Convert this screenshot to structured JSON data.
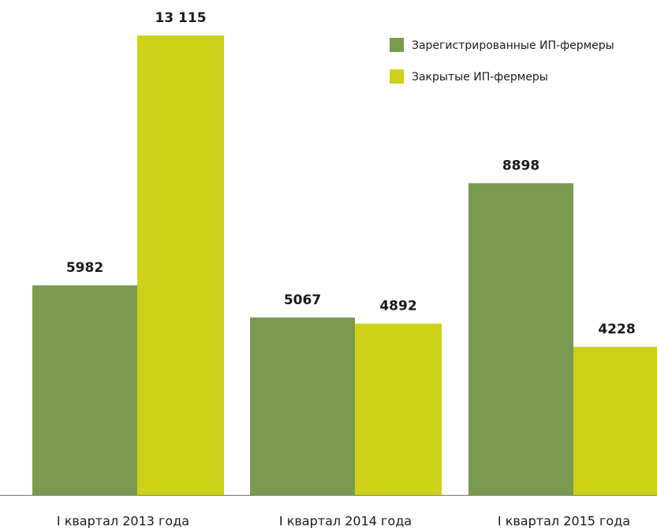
{
  "chart_data": {
    "type": "bar",
    "categories": [
      "I квартал 2013 года",
      "I квартал 2014 года",
      "I квартал 2015 года"
    ],
    "series": [
      {
        "name": "Зарегистрированные ИП-фермеры",
        "color": "#7a9a4f",
        "values": [
          5982,
          5067,
          8898
        ]
      },
      {
        "name": "Закрытые ИП-фермеры",
        "color": "#cdd119",
        "values": [
          13115,
          4892,
          4228
        ],
        "value_labels": [
          "13 115",
          "4892",
          "4228"
        ]
      }
    ]
  }
}
